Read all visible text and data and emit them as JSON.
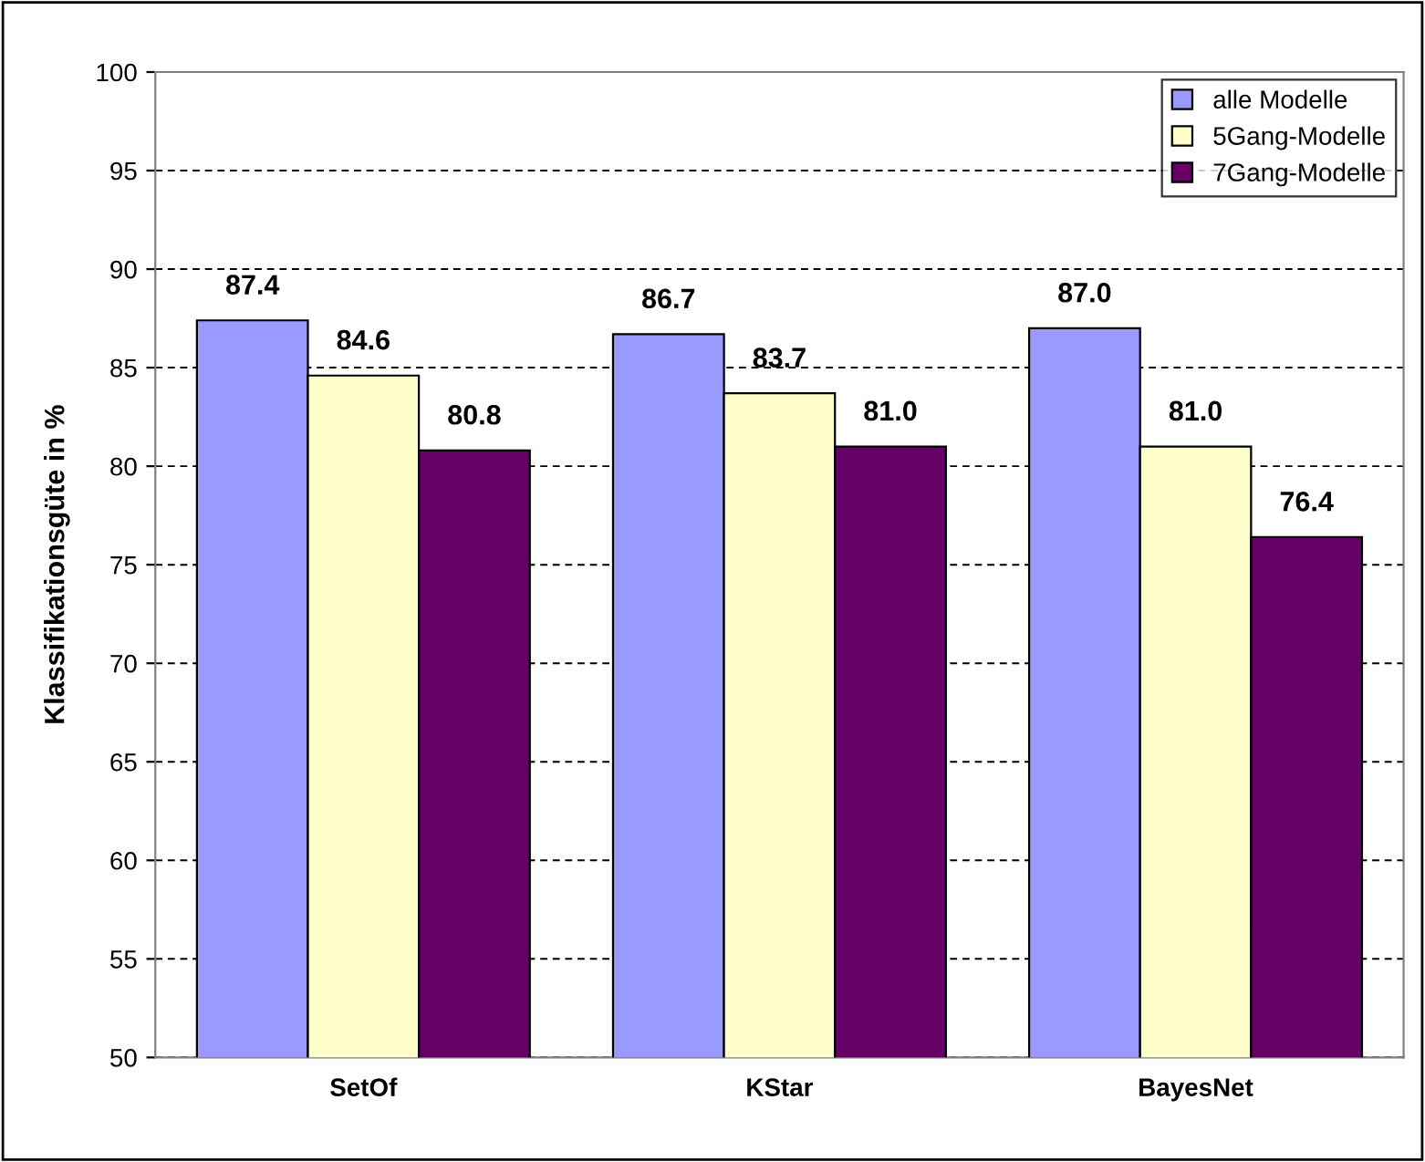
{
  "chart_data": {
    "type": "bar",
    "ylabel": "Klassifikationsgüte in %",
    "categories": [
      "SetOf",
      "KStar",
      "BayesNet"
    ],
    "series": [
      {
        "name": "alle Modelle",
        "color": "#9999ff",
        "values": [
          87.4,
          86.7,
          87.0
        ],
        "value_labels": [
          "87.4",
          "86.7",
          "87.0"
        ]
      },
      {
        "name": "5Gang-Modelle",
        "color": "#ffffcc",
        "values": [
          84.6,
          83.7,
          81.0
        ],
        "value_labels": [
          "84.6",
          "83.7",
          "81.0"
        ]
      },
      {
        "name": "7Gang-Modelle",
        "color": "#660066",
        "values": [
          80.8,
          81.0,
          76.4
        ],
        "value_labels": [
          "80.8",
          "81.0",
          "76.4"
        ]
      }
    ],
    "ylim": [
      50,
      100
    ],
    "yticks": [
      50,
      55,
      60,
      65,
      70,
      75,
      80,
      85,
      90,
      95,
      100
    ],
    "grid": "y",
    "legend": "top right"
  }
}
